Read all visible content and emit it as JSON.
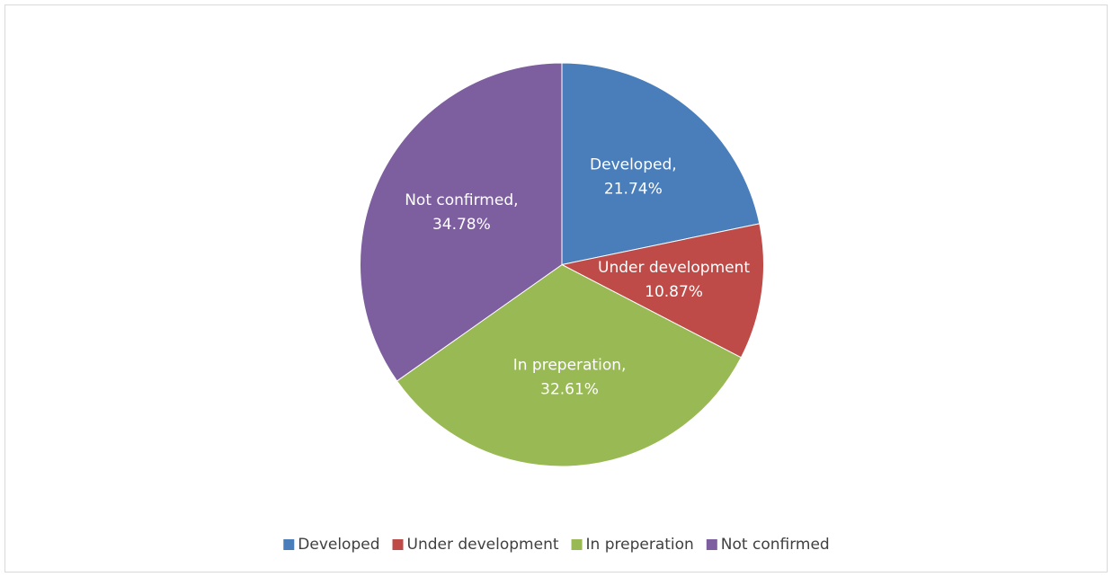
{
  "chart_data": {
    "type": "pie",
    "categories": [
      "Developed",
      "Under development",
      "In preperation",
      "Not confirmed"
    ],
    "values": [
      21.74,
      10.87,
      32.61,
      34.78
    ],
    "value_labels": [
      [
        "Developed,",
        "21.74%"
      ],
      [
        "Under development",
        "10.87%"
      ],
      [
        "In preperation,",
        "32.61%"
      ],
      [
        "Not confirmed,",
        "34.78%"
      ]
    ],
    "colors": [
      "#4a7ebb",
      "#be4b48",
      "#98b954",
      "#7d5fa0"
    ],
    "legend": "bottom"
  }
}
